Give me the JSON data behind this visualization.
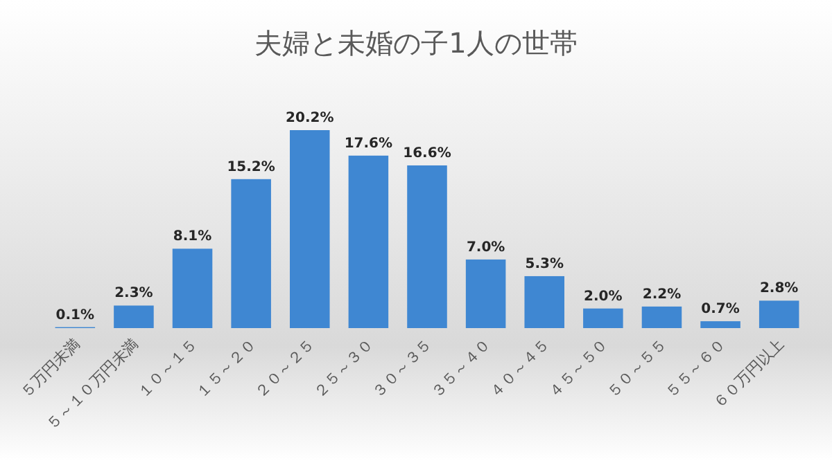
{
  "chart_data": {
    "type": "bar",
    "title": "夫婦と未婚の子1人の世帯",
    "categories": [
      "５万円未満",
      "５～１０万円未満",
      "１０～１５",
      "１５～２０",
      "２０～２５",
      "２５～３０",
      "３０～３５",
      "３５～４０",
      "４０～４５",
      "４５～５０",
      "５０～５５",
      "５５～６０",
      "６０万円以上"
    ],
    "values": [
      0.1,
      2.3,
      8.1,
      15.2,
      20.2,
      17.6,
      16.6,
      7.0,
      5.3,
      2.0,
      2.2,
      0.7,
      2.8
    ],
    "value_labels": [
      "0.1%",
      "2.3%",
      "8.1%",
      "15.2%",
      "20.2%",
      "17.6%",
      "16.6%",
      "7.0%",
      "5.3%",
      "2.0%",
      "2.2%",
      "0.7%",
      "2.8%"
    ],
    "color": "#3f87d2"
  }
}
